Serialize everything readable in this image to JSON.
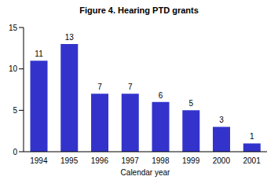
{
  "chart_data": {
    "type": "bar",
    "title": "Figure 4. Hearing PTD grants",
    "x_label": "Calendar year",
    "categories": [
      "1994",
      "1995",
      "1996",
      "1997",
      "1998",
      "1999",
      "2000",
      "2001"
    ],
    "values": [
      11,
      13,
      7,
      7,
      6,
      5,
      3,
      1
    ],
    "color": "#3333cc",
    "ylim": [
      0,
      15
    ],
    "yticks": [
      0,
      5,
      10,
      15
    ],
    "grid": false,
    "data_labels": true
  }
}
